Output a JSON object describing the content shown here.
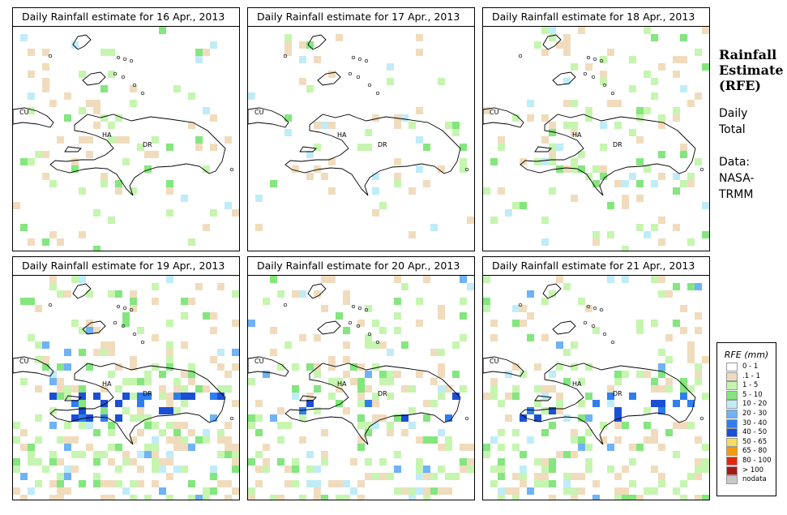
{
  "panels": [
    {
      "title": "Daily Rainfall estimate for  16 Apr., 2013",
      "labels": {
        "cu": "CU",
        "ha": "HA",
        "dr": "DR"
      }
    },
    {
      "title": "Daily Rainfall estimate for  17 Apr., 2013",
      "labels": {
        "cu": "CU",
        "ha": "HA",
        "dr": "DR"
      }
    },
    {
      "title": "Daily Rainfall estimate for  18 Apr., 2013",
      "labels": {
        "cu": "CU",
        "ha": "HA",
        "dr": "DR"
      }
    },
    {
      "title": "Daily Rainfall estimate for  19 Apr., 2013",
      "labels": {
        "cu": "CU",
        "ha": "HA",
        "dr": "DR"
      }
    },
    {
      "title": "Daily Rainfall estimate for  20 Apr., 2013",
      "labels": {
        "cu": "CU",
        "ha": "HA",
        "dr": "DR"
      }
    },
    {
      "title": "Daily Rainfall estimate for  21 Apr., 2013",
      "labels": {
        "cu": "CU",
        "ha": "HA",
        "dr": "DR"
      }
    }
  ],
  "sidebar": {
    "title_line1": "Rainfall",
    "title_line2": "Estimate",
    "title_line3": "(RFE)",
    "daily_line1": "Daily",
    "daily_line2": "Total",
    "data_line1": "Data:",
    "data_line2": "NASA-",
    "data_line3": "TRMM"
  },
  "legend": {
    "title": "RFE (mm)",
    "items": [
      {
        "label": "0 - 1",
        "color": "#ffffff"
      },
      {
        "label": ".1 - 1",
        "color": "#f0dcbd"
      },
      {
        "label": "1 - 5",
        "color": "#c6f5b0"
      },
      {
        "label": "5 - 10",
        "color": "#84e67e"
      },
      {
        "label": "10 - 20",
        "color": "#c0ecf7"
      },
      {
        "label": "20 - 30",
        "color": "#6fb2f5"
      },
      {
        "label": "30 - 40",
        "color": "#2f7ef0"
      },
      {
        "label": "40 - 50",
        "color": "#1a4fd6"
      },
      {
        "label": "50 - 65",
        "color": "#f7dd5c"
      },
      {
        "label": "65 - 80",
        "color": "#f79a12"
      },
      {
        "label": "80 - 100",
        "color": "#e8260c"
      },
      {
        "label": "> 100",
        "color": "#a51a14"
      },
      {
        "label": "nodata",
        "color": "#c8c8c8"
      }
    ]
  }
}
